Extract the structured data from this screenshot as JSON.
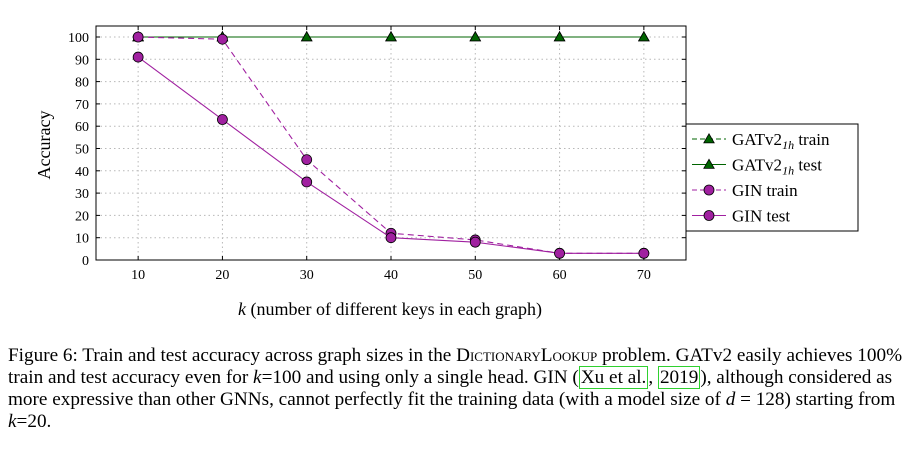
{
  "chart_data": {
    "type": "line",
    "xlabel_symbol": "k",
    "xlabel_rest": " (number of different keys in each graph)",
    "ylabel": "Accuracy",
    "x": [
      10,
      20,
      30,
      40,
      50,
      60,
      70
    ],
    "xlim": [
      5,
      75
    ],
    "ylim": [
      0,
      100
    ],
    "yticks": [
      0,
      10,
      20,
      30,
      40,
      50,
      60,
      70,
      80,
      90,
      100
    ],
    "grid": true,
    "legend_position": "right",
    "series": [
      {
        "name": "GATv21h train",
        "name_main": "GATv2",
        "name_sub": "1h",
        "name_after": " train",
        "values": [
          100,
          100,
          100,
          100,
          100,
          100,
          100
        ],
        "color": "#006400",
        "dashed": true,
        "marker": "triangle"
      },
      {
        "name": "GATv21h test",
        "name_main": "GATv2",
        "name_sub": "1h",
        "name_after": " test",
        "values": [
          100,
          100,
          100,
          100,
          100,
          100,
          100
        ],
        "color": "#006400",
        "dashed": false,
        "marker": "triangle"
      },
      {
        "name": "GIN train",
        "name_main": "GIN train",
        "name_sub": "",
        "name_after": "",
        "values": [
          100,
          99,
          45,
          12,
          9,
          3,
          3
        ],
        "color": "#a020a0",
        "dashed": true,
        "marker": "circle"
      },
      {
        "name": "GIN test",
        "name_main": "GIN test",
        "name_sub": "",
        "name_after": "",
        "values": [
          91,
          63,
          35,
          10,
          8,
          3,
          3
        ],
        "color": "#a020a0",
        "dashed": false,
        "marker": "circle"
      }
    ]
  },
  "caption": {
    "p1": "Figure 6: Train and test accuracy across graph sizes in the ",
    "sc": "DictionaryLookup",
    "p2": " problem. GATv2 easily achieves 100% train and test accuracy even for ",
    "k1": "k",
    "p3": "=100 and using only a single head. GIN (",
    "cite_authors": "Xu et al.",
    "p4": ", ",
    "cite_year": "2019",
    "p5": "), although considered as more expressive than other GNNs, cannot perfectly fit the training data (with a model size of ",
    "d": "d",
    "p6": " = 128) starting from ",
    "k2": "k",
    "p7": "=20."
  }
}
